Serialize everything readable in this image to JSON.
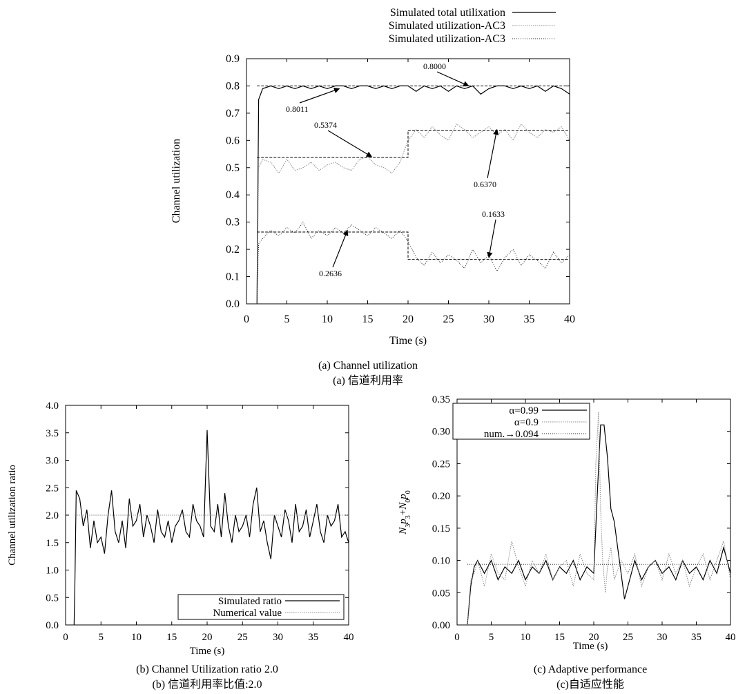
{
  "chart_data": [
    {
      "type": "line",
      "caption_en": "(a) Channel utilization",
      "caption_zh": "(a)  信道利用率",
      "xlabel": "Time (s)",
      "ylabel": "Channel utilization",
      "xlim": [
        0,
        40
      ],
      "ylim": [
        0.0,
        0.9
      ],
      "x_ticks": [
        "0",
        "5",
        "10",
        "15",
        "20",
        "25",
        "30",
        "35",
        "40"
      ],
      "y_ticks": [
        "0.0",
        "0.1",
        "0.2",
        "0.3",
        "0.4",
        "0.5",
        "0.6",
        "0.7",
        "0.8",
        "0.9"
      ],
      "legend": {
        "placement": "top",
        "entries": [
          "Simulated total utilixation",
          "Simulated utilization-AC3",
          "Simulated utilization-AC3"
        ]
      },
      "series": [
        {
          "name": "Simulated total utilixation",
          "style": "solid-black",
          "x": [
            1.3,
            1.5,
            2,
            3,
            4,
            5,
            6,
            7,
            8,
            9,
            10,
            11,
            12,
            13,
            14,
            15,
            16,
            17,
            18,
            19,
            20,
            21,
            22,
            23,
            24,
            25,
            26,
            27,
            28,
            29,
            30,
            31,
            32,
            33,
            34,
            35,
            36,
            37,
            38,
            39,
            40
          ],
          "y": [
            0.0,
            0.75,
            0.79,
            0.8,
            0.79,
            0.8,
            0.79,
            0.8,
            0.79,
            0.8,
            0.79,
            0.8,
            0.8,
            0.79,
            0.8,
            0.8,
            0.79,
            0.8,
            0.79,
            0.8,
            0.8,
            0.78,
            0.8,
            0.79,
            0.8,
            0.78,
            0.8,
            0.79,
            0.8,
            0.77,
            0.79,
            0.8,
            0.8,
            0.79,
            0.8,
            0.79,
            0.8,
            0.78,
            0.8,
            0.79,
            0.77
          ]
        },
        {
          "name": "Simulated utilization-AC3",
          "style": "dotted-gray",
          "x": [
            1.3,
            1.5,
            2,
            3,
            4,
            5,
            6,
            7,
            8,
            9,
            10,
            11,
            12,
            13,
            14,
            15,
            16,
            17,
            18,
            19,
            20,
            21,
            22,
            23,
            24,
            25,
            26,
            27,
            28,
            29,
            30,
            31,
            32,
            33,
            34,
            35,
            36,
            37,
            38,
            39,
            40
          ],
          "y": [
            0.0,
            0.5,
            0.53,
            0.52,
            0.48,
            0.53,
            0.49,
            0.5,
            0.52,
            0.49,
            0.51,
            0.52,
            0.5,
            0.49,
            0.53,
            0.54,
            0.51,
            0.5,
            0.48,
            0.52,
            0.6,
            0.64,
            0.61,
            0.65,
            0.62,
            0.6,
            0.66,
            0.64,
            0.61,
            0.63,
            0.65,
            0.62,
            0.64,
            0.6,
            0.66,
            0.63,
            0.61,
            0.64,
            0.63,
            0.65,
            0.6
          ]
        },
        {
          "name": "Simulated utilization-AC3",
          "style": "dotted-black",
          "x": [
            1.3,
            1.5,
            2,
            3,
            4,
            5,
            6,
            7,
            8,
            9,
            10,
            11,
            12,
            13,
            14,
            15,
            16,
            17,
            18,
            19,
            20,
            21,
            22,
            23,
            24,
            25,
            26,
            27,
            28,
            29,
            30,
            31,
            32,
            33,
            34,
            35,
            36,
            37,
            38,
            39,
            40
          ],
          "y": [
            0.0,
            0.22,
            0.24,
            0.27,
            0.25,
            0.28,
            0.26,
            0.3,
            0.24,
            0.27,
            0.25,
            0.28,
            0.26,
            0.29,
            0.27,
            0.25,
            0.28,
            0.26,
            0.24,
            0.27,
            0.23,
            0.17,
            0.14,
            0.19,
            0.15,
            0.18,
            0.16,
            0.13,
            0.2,
            0.15,
            0.18,
            0.12,
            0.17,
            0.2,
            0.14,
            0.18,
            0.16,
            0.13,
            0.19,
            0.15,
            0.18
          ]
        },
        {
          "name": "",
          "style": "dashed-numerical",
          "x": [
            1.3,
            20,
            20,
            40
          ],
          "y": [
            0.5374,
            0.5374,
            0.637,
            0.637
          ]
        },
        {
          "name": "",
          "style": "dashed-numerical",
          "x": [
            1.3,
            20,
            20,
            40
          ],
          "y": [
            0.2636,
            0.2636,
            0.1633,
            0.1633
          ]
        },
        {
          "name": "",
          "style": "dashed-numerical",
          "x": [
            1.3,
            40
          ],
          "y": [
            0.8,
            0.8
          ]
        }
      ],
      "annotations": [
        {
          "text": "0.8011",
          "x": 11.5,
          "y": 0.79
        },
        {
          "text": "0.8000",
          "x": 27.5,
          "y": 0.8
        },
        {
          "text": "0.5374",
          "x": 15.5,
          "y": 0.54
        },
        {
          "text": "0.6370",
          "x": 31.0,
          "y": 0.64
        },
        {
          "text": "0.2636",
          "x": 12.5,
          "y": 0.27
        },
        {
          "text": "0.1633",
          "x": 30.0,
          "y": 0.17
        }
      ]
    },
    {
      "type": "line",
      "caption_en": "(b) Channel Utilization ratio 2.0",
      "caption_zh": "(b)  信道利用率比值:2.0",
      "xlabel": "Time (s)",
      "ylabel": "Channel utilization ratio",
      "xlim": [
        0,
        40
      ],
      "ylim": [
        0.0,
        4.0
      ],
      "x_ticks": [
        "0",
        "5",
        "10",
        "15",
        "20",
        "25",
        "30",
        "35",
        "40"
      ],
      "y_ticks": [
        "0.0",
        "0.5",
        "1.0",
        "1.5",
        "2.0",
        "2.5",
        "3.0",
        "3.5",
        "4.0"
      ],
      "legend": {
        "placement": "bottom-right",
        "entries": [
          "Simulated ratio",
          "Numerical value"
        ]
      },
      "series": [
        {
          "name": "Simulated ratio",
          "style": "solid-black",
          "x": [
            1.2,
            1.3,
            1.5,
            2,
            2.5,
            3,
            3.5,
            4,
            4.5,
            5,
            5.5,
            6,
            6.5,
            7,
            7.5,
            8,
            8.5,
            9,
            9.5,
            10,
            10.5,
            11,
            11.5,
            12,
            12.5,
            13,
            13.5,
            14,
            14.5,
            15,
            15.5,
            16,
            16.5,
            17,
            17.5,
            18,
            18.5,
            19,
            19.5,
            20,
            20.5,
            21,
            21.5,
            22,
            22.5,
            23,
            23.5,
            24,
            24.5,
            25,
            25.5,
            26,
            26.5,
            27,
            27.5,
            28,
            28.5,
            29,
            29.5,
            30,
            30.5,
            31,
            31.5,
            32,
            32.5,
            33,
            33.5,
            34,
            34.5,
            35,
            35.5,
            36,
            36.5,
            37,
            37.5,
            38,
            38.5,
            39,
            39.5,
            40
          ],
          "y": [
            0.0,
            0.6,
            2.45,
            2.3,
            1.8,
            2.1,
            1.4,
            1.9,
            1.5,
            1.6,
            1.3,
            2.0,
            2.45,
            1.7,
            1.5,
            1.9,
            1.4,
            2.3,
            1.8,
            1.9,
            2.2,
            1.6,
            2.0,
            1.8,
            1.5,
            2.1,
            1.7,
            1.6,
            1.9,
            1.5,
            1.8,
            1.9,
            2.1,
            1.7,
            1.6,
            2.2,
            1.9,
            1.8,
            1.6,
            3.55,
            1.8,
            1.7,
            2.2,
            1.6,
            2.4,
            1.8,
            1.5,
            2.0,
            1.7,
            1.8,
            2.0,
            1.6,
            2.2,
            2.5,
            1.7,
            1.9,
            1.5,
            1.2,
            2.0,
            1.8,
            1.6,
            2.1,
            1.9,
            1.5,
            2.2,
            1.7,
            1.8,
            2.1,
            1.6,
            1.9,
            2.2,
            1.7,
            1.5,
            2.0,
            1.8,
            1.9,
            2.2,
            1.6,
            1.7,
            1.5
          ]
        },
        {
          "name": "Numerical value",
          "style": "dotted-gray",
          "x": [
            1.3,
            40
          ],
          "y": [
            2.0,
            2.0
          ]
        }
      ]
    },
    {
      "type": "line",
      "caption_en": "(c) Adaptive performance",
      "caption_zh": "(c)自适应性能",
      "xlabel": "Time (s)",
      "ylabel": "N3p3+N0p0",
      "xlim": [
        0,
        40
      ],
      "ylim": [
        0.0,
        0.35
      ],
      "x_ticks": [
        "0",
        "5",
        "10",
        "15",
        "20",
        "25",
        "30",
        "35",
        "40"
      ],
      "y_ticks": [
        "0.00",
        "0.05",
        "0.10",
        "0.15",
        "0.20",
        "0.25",
        "0.30",
        "0.35"
      ],
      "legend": {
        "placement": "top-left",
        "entries": [
          "α=0.99",
          "α=0.9",
          "num.→0.094"
        ]
      },
      "series": [
        {
          "name": "α=0.99",
          "style": "solid-black",
          "x": [
            1.5,
            2,
            2.5,
            3,
            4,
            5,
            6,
            7,
            8,
            9,
            10,
            11,
            12,
            13,
            14,
            15,
            16,
            17,
            18,
            19,
            20,
            20.5,
            21,
            21.5,
            22,
            22.5,
            23,
            23.5,
            24,
            24.5,
            25,
            26,
            27,
            28,
            29,
            30,
            31,
            32,
            33,
            34,
            35,
            36,
            37,
            38,
            39,
            40
          ],
          "y": [
            0.0,
            0.06,
            0.09,
            0.1,
            0.08,
            0.1,
            0.07,
            0.09,
            0.08,
            0.1,
            0.07,
            0.09,
            0.08,
            0.1,
            0.07,
            0.09,
            0.08,
            0.1,
            0.07,
            0.09,
            0.08,
            0.2,
            0.31,
            0.31,
            0.26,
            0.18,
            0.16,
            0.12,
            0.08,
            0.04,
            0.06,
            0.1,
            0.07,
            0.09,
            0.1,
            0.08,
            0.09,
            0.07,
            0.1,
            0.08,
            0.09,
            0.07,
            0.1,
            0.08,
            0.12,
            0.08
          ]
        },
        {
          "name": "α=0.9",
          "style": "dotted-gray",
          "x": [
            1.5,
            2,
            2.5,
            3,
            4,
            5,
            6,
            7,
            8,
            9,
            10,
            11,
            12,
            13,
            14,
            15,
            16,
            17,
            18,
            19,
            20,
            20.3,
            20.7,
            21,
            21.3,
            21.7,
            22,
            22.5,
            23,
            24,
            25,
            26,
            27,
            28,
            29,
            30,
            31,
            32,
            33,
            34,
            35,
            36,
            37,
            38,
            39,
            40
          ],
          "y": [
            0.0,
            0.07,
            0.08,
            0.1,
            0.06,
            0.11,
            0.08,
            0.07,
            0.13,
            0.09,
            0.06,
            0.1,
            0.08,
            0.11,
            0.07,
            0.09,
            0.1,
            0.06,
            0.11,
            0.08,
            0.07,
            0.25,
            0.33,
            0.18,
            0.1,
            0.05,
            0.09,
            0.12,
            0.07,
            0.1,
            0.08,
            0.11,
            0.06,
            0.09,
            0.1,
            0.07,
            0.11,
            0.08,
            0.1,
            0.06,
            0.09,
            0.11,
            0.07,
            0.1,
            0.13,
            0.07
          ]
        },
        {
          "name": "num.→0.094",
          "style": "dotted-black",
          "x": [
            1.5,
            40
          ],
          "y": [
            0.094,
            0.094
          ]
        }
      ]
    }
  ]
}
